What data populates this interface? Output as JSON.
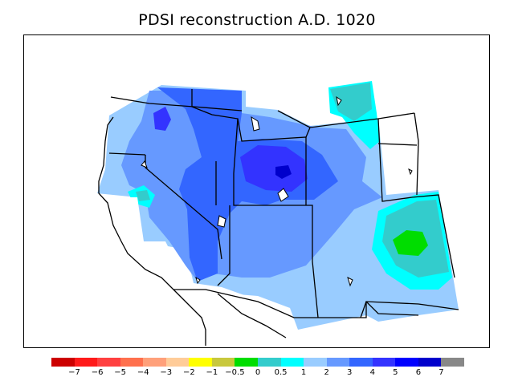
{
  "title": "PDSI reconstruction A.D. 1020",
  "legend": {
    "colors": [
      "#cc0000",
      "#ff1a1a",
      "#ff4040",
      "#ff704d",
      "#ffa07a",
      "#ffcc99",
      "#ffff00",
      "#c8c83c",
      "#00dd00",
      "#33cccc",
      "#00ffff",
      "#99ccff",
      "#6699ff",
      "#3366ff",
      "#3333ff",
      "#0000ff",
      "#0000cc",
      "#888888"
    ],
    "labels": [
      "−7",
      "−6",
      "−5",
      "−4",
      "−3",
      "−2",
      "−1",
      "−0.5",
      "0",
      "0.5",
      "1",
      "2",
      "3",
      "4",
      "5",
      "6",
      "7"
    ]
  },
  "map": {
    "region": "Western United States",
    "field_colors": {
      "very_wet_core": "#0000cc",
      "wet_strong": "#3333ff",
      "wet_medium": "#3366ff",
      "wet_light": "#6699ff",
      "wet_faint": "#99ccff",
      "near_normal": "#33cccc",
      "slightly_wet": "#00ffff",
      "normal": "#00dd00"
    }
  }
}
